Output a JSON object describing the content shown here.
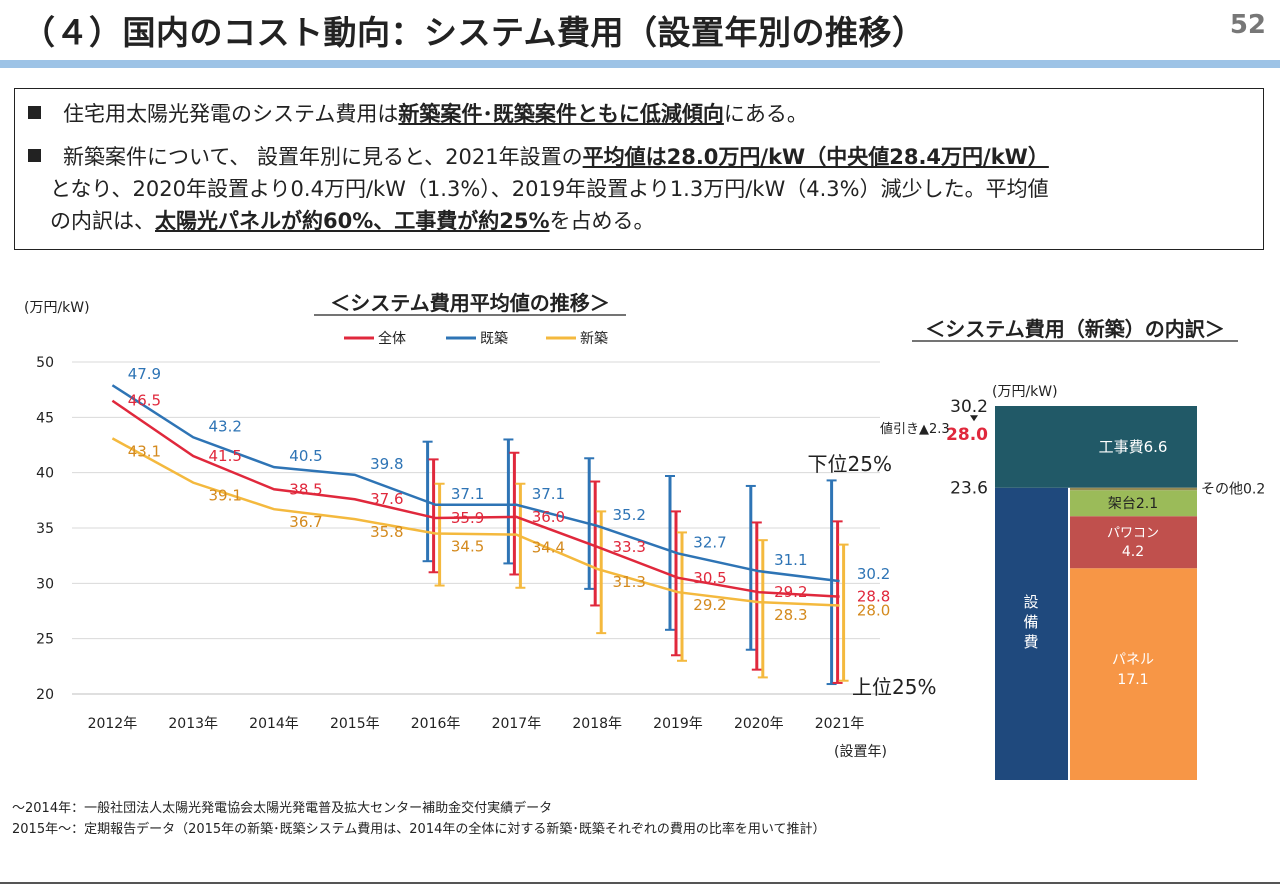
{
  "header": {
    "title": "（４）国内のコスト動向：システム費用（設置年別の推移）",
    "page_number": "52"
  },
  "summary": {
    "bullet1": {
      "pre": "住宅用太陽光発電のシステム費用は",
      "em": "新築案件･既築案件ともに低減傾向",
      "post": "にある。"
    },
    "bullet2": {
      "line1_pre": "新築案件について、 設置年別に見ると、2021年設置の",
      "line1_em": "平均値は28.0万円/kW（中央値28.4万円/kW）",
      "line2": "となり、2020年設置より0.4万円/kW（1.3%）、2019年設置より1.3万円/kW（4.3%）減少した。平均値",
      "line3_pre": "の内訳は、",
      "line3_em": "太陽光パネルが約60%、工事費が約25%",
      "line3_post": "を占める。"
    }
  },
  "line_chart": {
    "title": "＜システム費用平均値の推移＞",
    "ylabel": "(万円/kW)",
    "xlabel": "(設置年)",
    "annotation_upper": "下位25%",
    "annotation_lower": "上位25%",
    "colors": {
      "all": "#e0283c",
      "existing": "#2e74b5",
      "new": "#f4b93e",
      "new_label": "#d48a1e"
    }
  },
  "chart_data": [
    {
      "type": "line",
      "title": "＜システム費用平均値の推移＞",
      "ylabel": "(万円/kW)",
      "xlabel": "(設置年)",
      "ylim": [
        20,
        50
      ],
      "yticks": [
        20,
        25,
        30,
        35,
        40,
        45,
        50
      ],
      "grid": true,
      "legend": "top",
      "categories": [
        "2012年",
        "2013年",
        "2014年",
        "2015年",
        "2016年",
        "2017年",
        "2018年",
        "2019年",
        "2020年",
        "2021年"
      ],
      "series": [
        {
          "name": "全体",
          "color": "#e0283c",
          "values": [
            46.5,
            41.5,
            38.5,
            37.6,
            35.9,
            36.0,
            33.3,
            30.5,
            29.2,
            28.8
          ],
          "labels": [
            "46.5",
            "41.5",
            "38.5",
            "37.6",
            "35.9",
            "36.0",
            "33.3",
            "30.5",
            "29.2",
            "28.8"
          ]
        },
        {
          "name": "既築",
          "color": "#2e74b5",
          "values": [
            47.9,
            43.2,
            40.5,
            39.8,
            37.1,
            37.1,
            35.2,
            32.7,
            31.1,
            30.2
          ],
          "labels": [
            "47.9",
            "43.2",
            "40.5",
            "39.8",
            "37.1",
            "37.1",
            "35.2",
            "32.7",
            "31.1",
            "30.2"
          ]
        },
        {
          "name": "新築",
          "color": "#f4b93e",
          "values": [
            43.1,
            39.1,
            36.7,
            35.8,
            34.5,
            34.4,
            31.3,
            29.2,
            28.3,
            28.0
          ],
          "labels": [
            "43.1",
            "39.1",
            "36.7",
            "35.8",
            "34.5",
            "34.4",
            "31.3",
            "29.2",
            "28.3",
            "28.0"
          ]
        }
      ],
      "error_bars": {
        "from_index": 4,
        "全体": [
          [
            31.0,
            41.2
          ],
          [
            30.8,
            41.8
          ],
          [
            28.0,
            39.2
          ],
          [
            23.5,
            36.5
          ],
          [
            22.2,
            35.5
          ],
          [
            21.0,
            35.6
          ]
        ],
        "既築": [
          [
            32.0,
            42.8
          ],
          [
            31.8,
            43.0
          ],
          [
            29.5,
            41.3
          ],
          [
            25.8,
            39.7
          ],
          [
            24.0,
            38.8
          ],
          [
            20.9,
            39.3
          ]
        ],
        "新築": [
          [
            29.8,
            39.0
          ],
          [
            29.6,
            39.0
          ],
          [
            25.5,
            36.5
          ],
          [
            23.0,
            34.6
          ],
          [
            21.5,
            33.9
          ],
          [
            21.2,
            33.5
          ]
        ]
      }
    },
    {
      "type": "bar",
      "title": "＜システム費用（新築）の内訳＞",
      "unit": "(万円/kW)",
      "ylim": [
        0,
        30.2
      ],
      "total": 30.2,
      "average": 28.0,
      "discount_label": "値引き▲2.3",
      "tick_top": "30.2",
      "tick_avg": "28.0",
      "tick_mid": "23.6",
      "bars": [
        {
          "name": "設備費",
          "label": "設\n備\n費",
          "color": "#1f497d",
          "segments": [
            {
              "name": "設備費",
              "value": 23.6
            }
          ]
        },
        {
          "name": "内訳",
          "segments": [
            {
              "name": "パネル",
              "label_line1": "パネル",
              "label_line2": "17.1",
              "value": 17.1,
              "color": "#f79646"
            },
            {
              "name": "パワコン",
              "label_line1": "パワコン",
              "label_line2": "4.2",
              "value": 4.2,
              "color": "#c0504d"
            },
            {
              "name": "架台",
              "label": "架台2.1",
              "value": 2.1,
              "color": "#9bbb59"
            },
            {
              "name": "その他",
              "label": "その他0.2",
              "value": 0.2,
              "color": "#948a54"
            }
          ]
        },
        {
          "name": "工事費",
          "label": "工事費6.6",
          "value": 6.6,
          "color": "#215967"
        }
      ]
    }
  ],
  "stacked_chart": {
    "title": "＜システム費用（新築）の内訳＞",
    "unit": "(万円/kW)",
    "discount_label": "値引き▲2.3",
    "tick_top": "30.2",
    "tick_avg": "28.0",
    "tick_mid": "23.6",
    "equip_label": "設\n備\n費",
    "construction_label": "工事費6.6",
    "rack_label": "架台2.1",
    "other_label": "その他0.2",
    "pcs_line1": "パワコン",
    "pcs_line2": "4.2",
    "panel_line1": "パネル",
    "panel_line2": "17.1",
    "colors": {
      "equipment": "#1f497d",
      "construction": "#215967",
      "panel": "#f79646",
      "pcs": "#c0504d",
      "rack": "#9bbb59",
      "other": "#948a54",
      "avg": "#e0283c"
    }
  },
  "sources": {
    "line1": "～2014年：一般社団法人太陽光発電協会太陽光発電普及拡大センター補助金交付実績データ",
    "line2": "2015年～：定期報告データ（2015年の新築･既築システム費用は、2014年の全体に対する新築･既築それぞれの費用の比率を用いて推計）"
  }
}
